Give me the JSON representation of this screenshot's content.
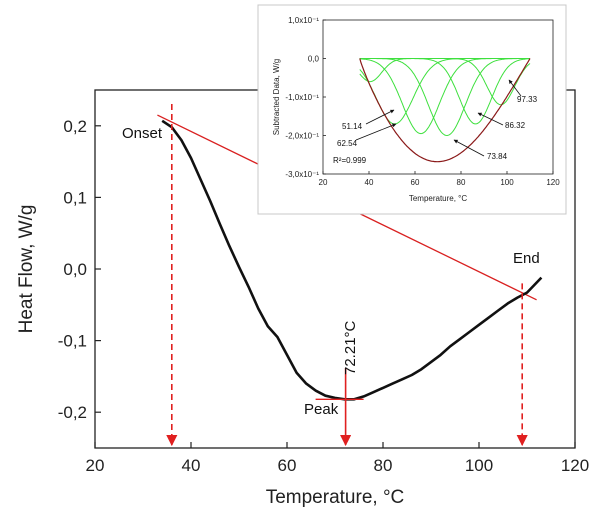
{
  "chart_data": [
    {
      "type": "line",
      "xlabel": "Temperature, °C",
      "ylabel": "Heat Flow, W/g",
      "xlim": [
        20,
        120
      ],
      "ylim": [
        -0.25,
        0.25
      ],
      "x_ticks": [
        "20",
        "40",
        "60",
        "80",
        "100",
        "120"
      ],
      "y_ticks": [
        "-0,2",
        "-0,1",
        "0,0",
        "0,1",
        "0,2"
      ],
      "series": [
        {
          "x": [
            34,
            36,
            38,
            40,
            42,
            44,
            46,
            48,
            50,
            52,
            54,
            56,
            58,
            60,
            62,
            64,
            66,
            68,
            70,
            72,
            74,
            76,
            78,
            80,
            82,
            84,
            86,
            88,
            90,
            92,
            94,
            96,
            98,
            100,
            102,
            104,
            106,
            108,
            110
          ],
          "y": [
            0.207,
            0.198,
            0.18,
            0.155,
            0.125,
            0.095,
            0.063,
            0.032,
            0.003,
            -0.025,
            -0.055,
            -0.08,
            -0.095,
            -0.12,
            -0.145,
            -0.16,
            -0.17,
            -0.177,
            -0.18,
            -0.182,
            -0.182,
            -0.178,
            -0.172,
            -0.166,
            -0.16,
            -0.154,
            -0.148,
            -0.14,
            -0.13,
            -0.12,
            -0.108,
            -0.098,
            -0.088,
            -0.078,
            -0.068,
            -0.058,
            -0.048,
            -0.04,
            -0.033
          ]
        }
      ],
      "baseline": {
        "x": [
          33,
          112
        ],
        "y": [
          0.215,
          -0.043
        ]
      },
      "annotations": {
        "onset": "Onset",
        "end": "End",
        "peak": "Peak",
        "peak_temp": "72.21°C"
      },
      "markers": {
        "onset_x": 36,
        "peak_x": 72.21,
        "end_x": 109
      }
    },
    {
      "type": "line",
      "xlabel": "Temperature, °C",
      "ylabel": "Subtracted Data, W/g",
      "xlim": [
        20,
        120
      ],
      "ylim": [
        -0.3,
        0.1
      ],
      "x_ticks": [
        "20",
        "40",
        "60",
        "80",
        "100",
        "120"
      ],
      "y_ticks": [
        "1,0x10⁻¹",
        "0,0",
        "-1,0x10⁻¹",
        "-2,0x10⁻¹",
        "-3,0x10⁻¹"
      ],
      "peak_components": [
        {
          "center": 40.5,
          "amplitude": -0.06,
          "width": 5
        },
        {
          "center": 51.14,
          "amplitude": -0.17,
          "width": 8
        },
        {
          "center": 62.54,
          "amplitude": -0.195,
          "width": 8
        },
        {
          "center": 73.84,
          "amplitude": -0.2,
          "width": 8
        },
        {
          "center": 86.32,
          "amplitude": -0.17,
          "width": 7
        },
        {
          "center": 97.33,
          "amplitude": -0.12,
          "width": 6
        }
      ],
      "fit_range": [
        36,
        110
      ],
      "labels": [
        "51.14",
        "62.54",
        "73.84",
        "86.32",
        "97.33"
      ],
      "r_squared": "R²=0.999"
    }
  ]
}
